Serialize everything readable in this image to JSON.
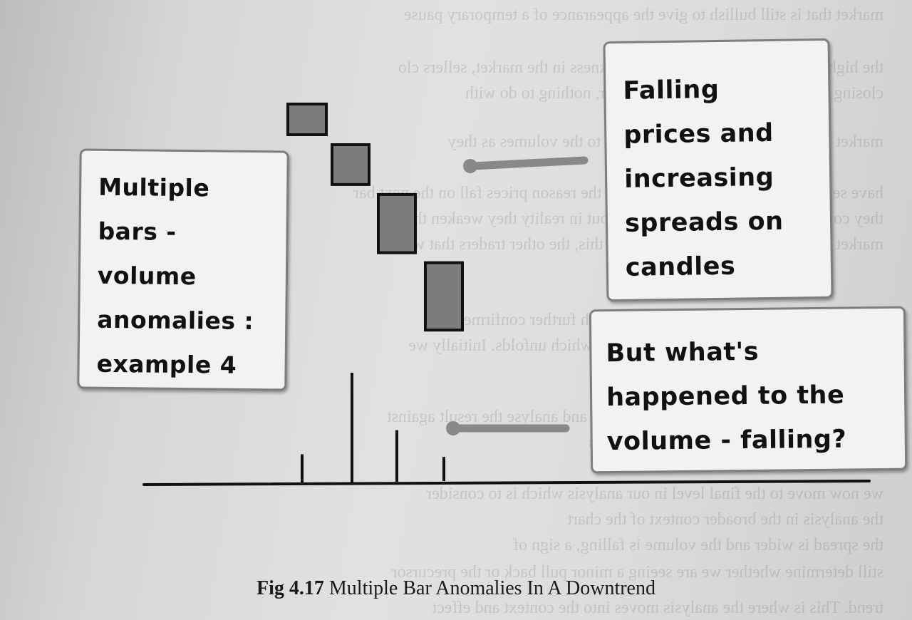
{
  "left_callout": {
    "text": "Multiple\nbars -\nvolume\nanomalies :\nexample 4"
  },
  "right_top_callout": {
    "text": "Falling\nprices and\nincreasing\nspreads on\ncandles"
  },
  "right_bottom_callout": {
    "text": "But what's\nhappened to the\nvolume - falling?"
  },
  "caption": {
    "label": "Fig 4.17",
    "title": "Multiple Bar Anomalies In A Downtrend"
  },
  "price_bars": [
    {
      "order": 1,
      "spread": 1.0
    },
    {
      "order": 2,
      "spread": 1.3
    },
    {
      "order": 3,
      "spread": 1.9
    },
    {
      "order": 4,
      "spread": 2.2
    }
  ],
  "volume_bars": [
    {
      "order": 1,
      "volume": 0.27
    },
    {
      "order": 2,
      "volume": 1.0
    },
    {
      "order": 3,
      "volume": 0.47
    },
    {
      "order": 4,
      "volume": 0.22
    }
  ],
  "colors": {
    "bar_fill": "#7d7c7d",
    "bar_stroke": "#111111",
    "arrow": "#888888",
    "callout_bg": "#f2f2f2",
    "callout_border": "#7e7e7e"
  }
}
